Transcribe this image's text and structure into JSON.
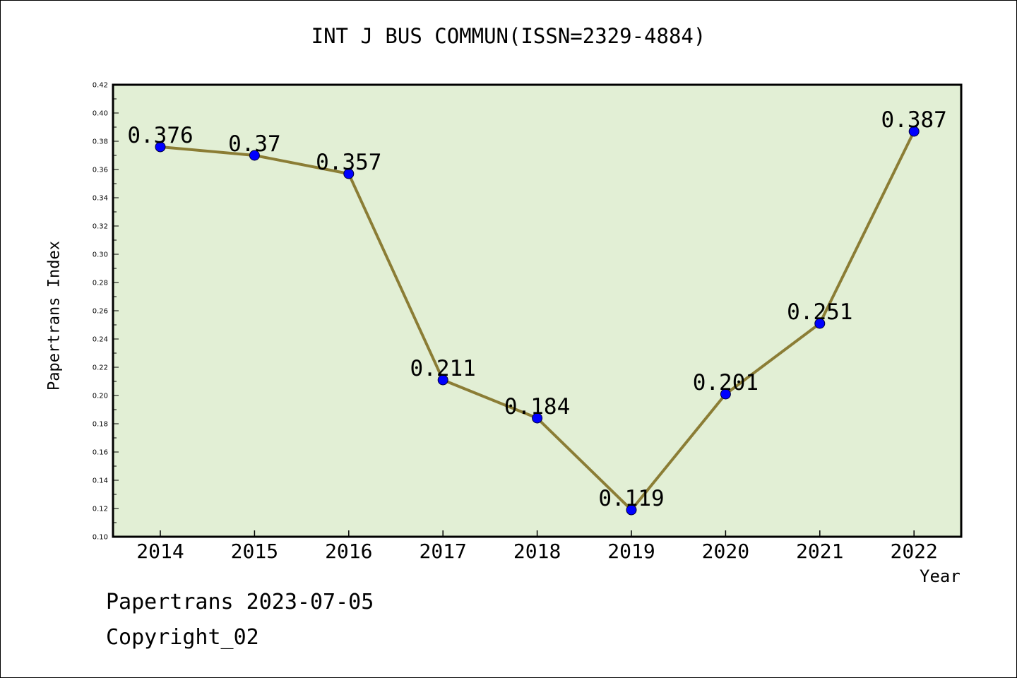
{
  "title": "INT J BUS COMMUN(ISSN=2329-4884)",
  "footer": {
    "line1": "Papertrans 2023-07-05",
    "line2": "Copyright_02"
  },
  "chart_data": {
    "type": "line",
    "title": "INT J BUS COMMUN(ISSN=2329-4884)",
    "xlabel": "Year",
    "ylabel": "Papertrans Index",
    "categories": [
      "2014",
      "2015",
      "2016",
      "2017",
      "2018",
      "2019",
      "2020",
      "2021",
      "2022"
    ],
    "series": [
      {
        "values": [
          0.376,
          0.37,
          0.357,
          0.211,
          0.184,
          0.119,
          0.201,
          0.251,
          0.387
        ],
        "labels": [
          "0.376",
          "0.37",
          "0.357",
          "0.211",
          "0.184",
          "0.119",
          "0.201",
          "0.251",
          "0.387"
        ]
      }
    ],
    "ylim": [
      0.1,
      0.42
    ],
    "yticks": [
      "0.10",
      "0.12",
      "0.14",
      "0.16",
      "0.18",
      "0.20",
      "0.22",
      "0.24",
      "0.26",
      "0.28",
      "0.30",
      "0.32",
      "0.34",
      "0.36",
      "0.38",
      "0.40",
      "0.42"
    ],
    "grid": false,
    "legend": "none",
    "colors": {
      "plot_background": "#e2efd5",
      "line": "#8b7d35",
      "marker": "#0000ff",
      "axis": "#000000"
    }
  }
}
